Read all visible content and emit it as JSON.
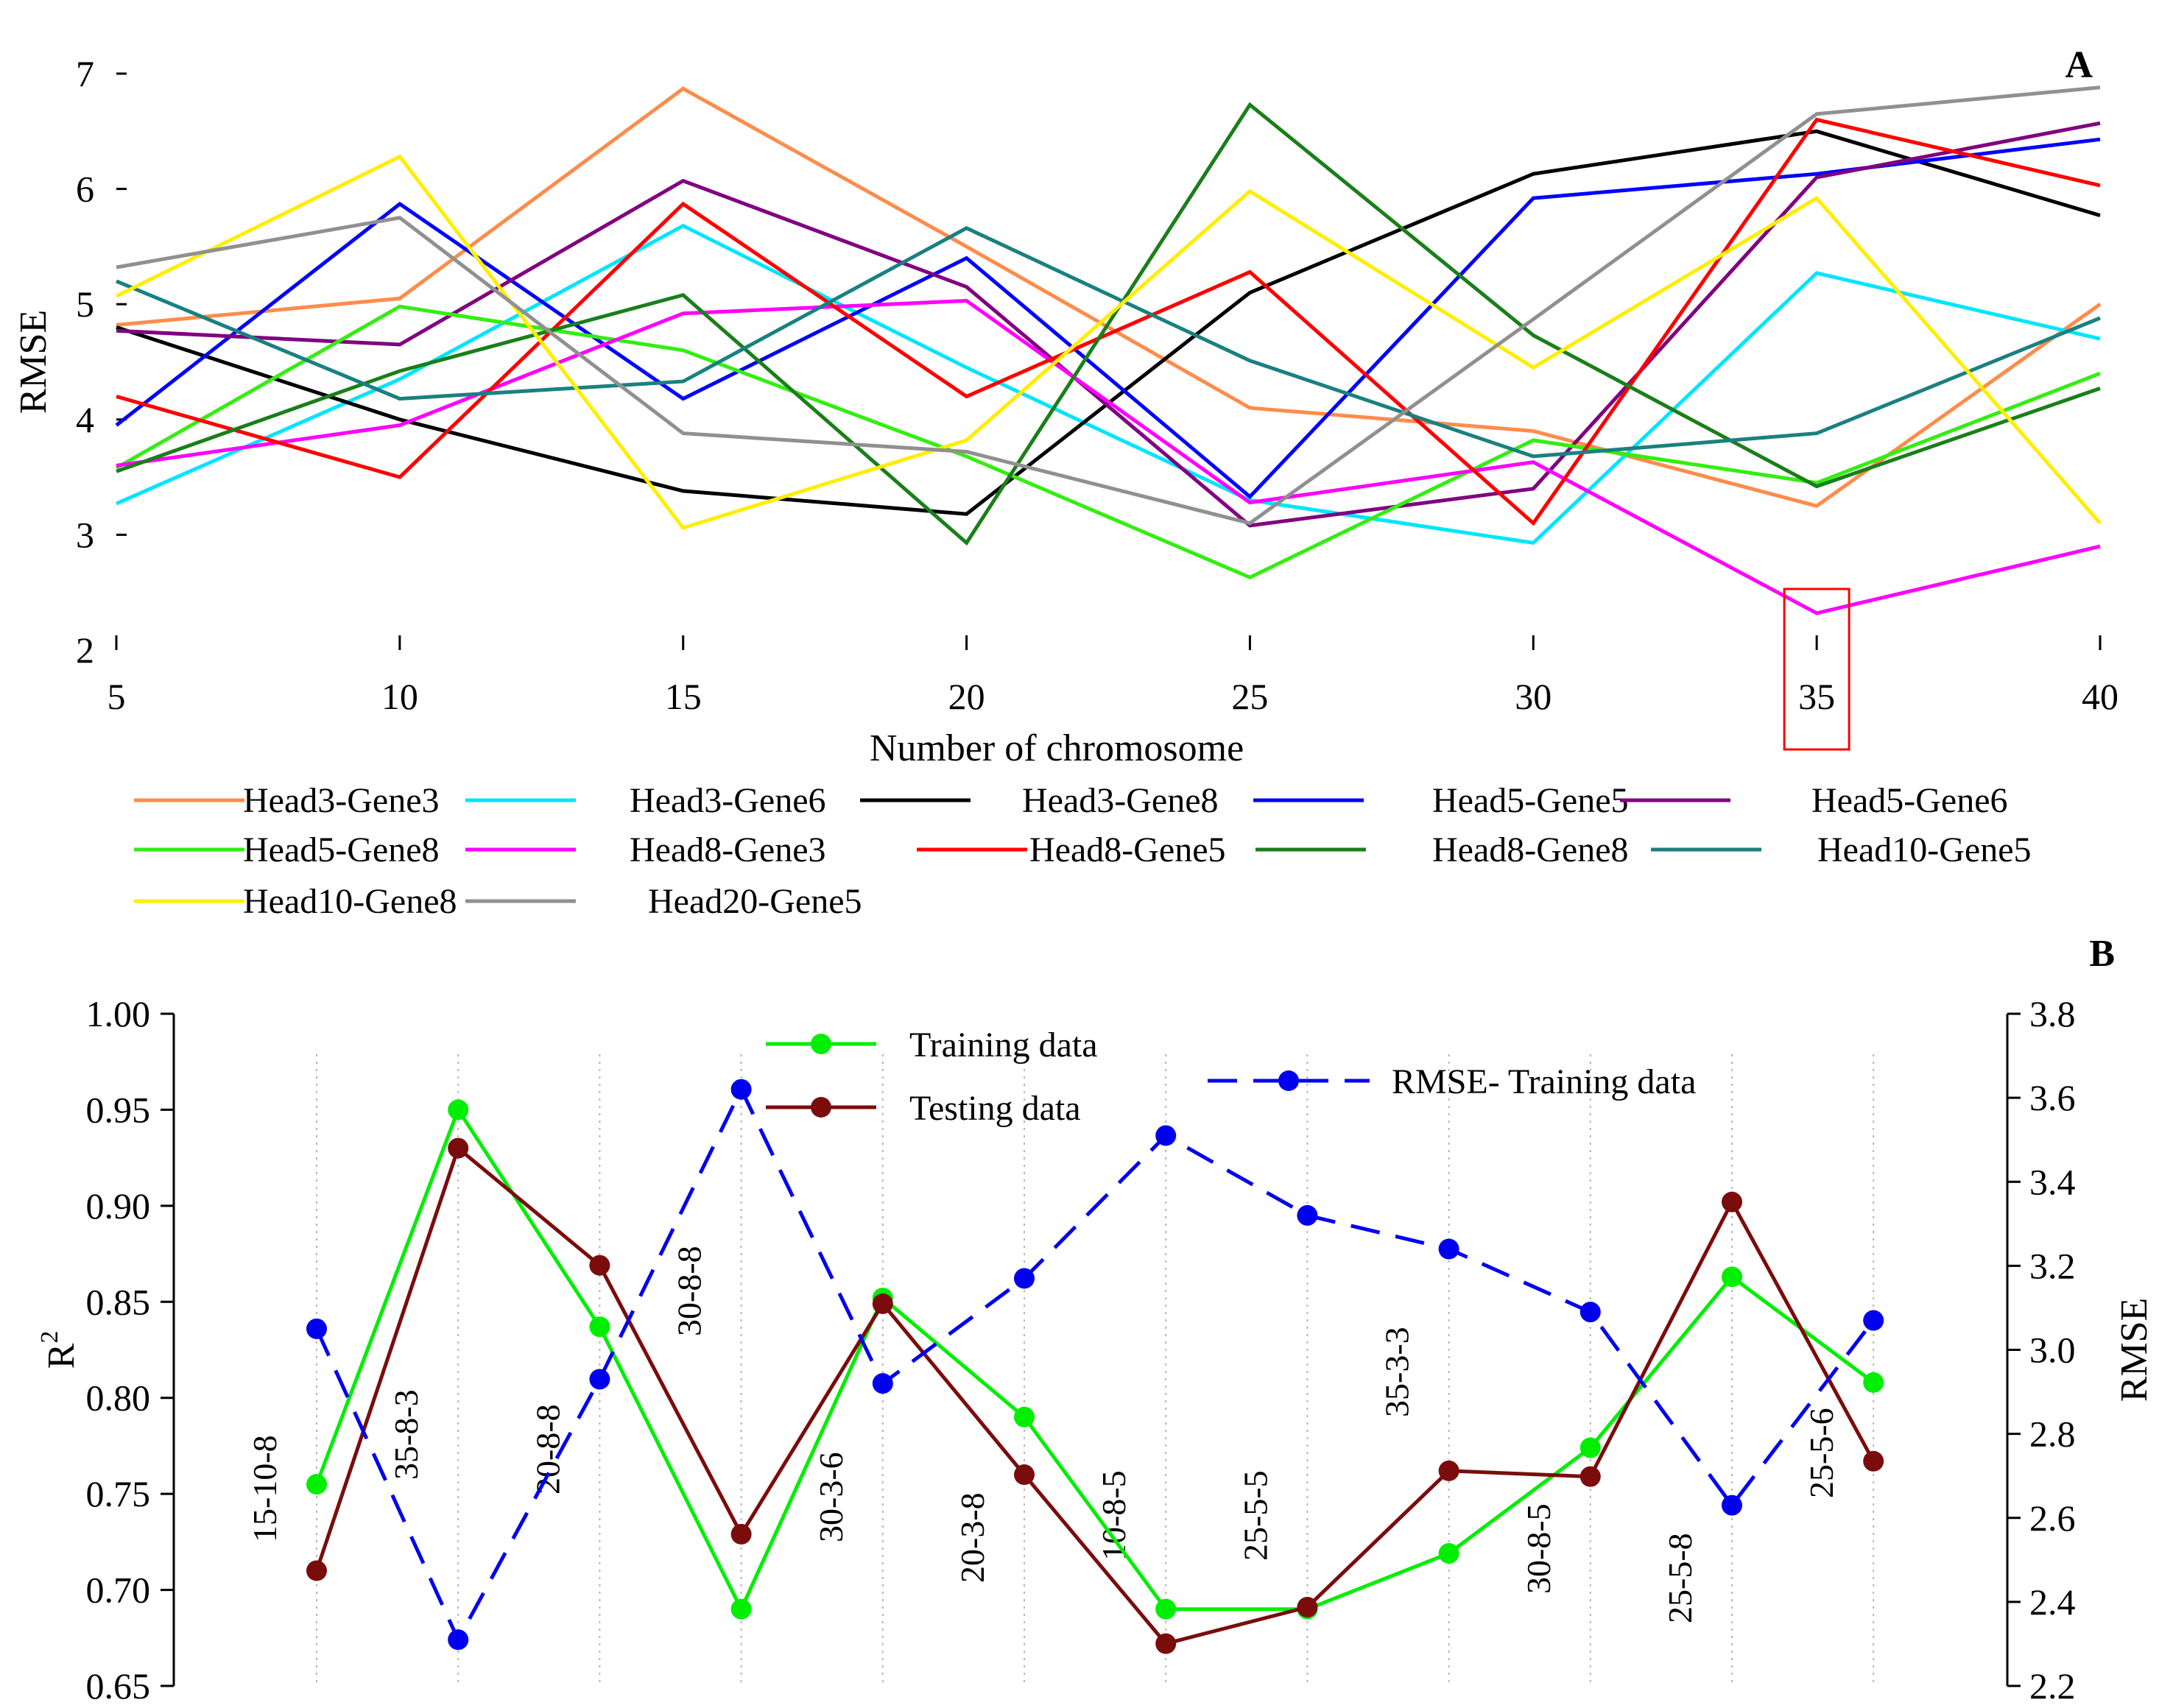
{
  "chart_data": [
    {
      "type": "line",
      "panel_label": "A",
      "xlabel": "Number of chromosome",
      "ylabel": "RMSE",
      "x": [
        5,
        10,
        15,
        20,
        25,
        30,
        35,
        40
      ],
      "xticks": [
        "5",
        "10",
        "15",
        "20",
        "25",
        "30",
        "35",
        "40"
      ],
      "ylim": [
        2,
        7
      ],
      "yticks": [
        "2",
        "3",
        "4",
        "5",
        "6",
        "7"
      ],
      "highlight": {
        "x": 35,
        "series": "Head8-Gene3",
        "color": "#ff0000"
      },
      "series": [
        {
          "name": "Head3-Gene3",
          "color": "#ff8c4a",
          "values": [
            4.82,
            5.05,
            6.87,
            5.5,
            4.1,
            3.9,
            3.25,
            5.0
          ]
        },
        {
          "name": "Head3-Gene6",
          "color": "#00e5ff",
          "values": [
            3.27,
            4.35,
            5.68,
            4.45,
            3.3,
            2.93,
            5.27,
            4.7
          ]
        },
        {
          "name": "Head3-Gene8",
          "color": "#000000",
          "values": [
            4.8,
            4.0,
            3.38,
            3.18,
            5.1,
            6.13,
            6.5,
            5.77
          ]
        },
        {
          "name": "Head5-Gene5",
          "color": "#0000ff",
          "values": [
            3.95,
            5.87,
            4.18,
            5.4,
            3.33,
            5.92,
            6.13,
            6.43
          ]
        },
        {
          "name": "Head5-Gene6",
          "color": "#800080",
          "values": [
            4.77,
            4.65,
            6.07,
            5.15,
            3.08,
            3.4,
            6.1,
            6.57
          ]
        },
        {
          "name": "Head5-Gene8",
          "color": "#33ee11",
          "values": [
            3.58,
            4.98,
            4.6,
            3.68,
            2.63,
            3.82,
            3.45,
            4.4
          ]
        },
        {
          "name": "Head8-Gene3",
          "color": "#ff00ff",
          "values": [
            3.6,
            3.95,
            4.92,
            5.03,
            3.28,
            3.63,
            2.32,
            2.9
          ]
        },
        {
          "name": "Head8-Gene5",
          "color": "#ff0000",
          "values": [
            4.2,
            3.5,
            5.87,
            4.2,
            5.28,
            3.1,
            6.6,
            6.03
          ]
        },
        {
          "name": "Head8-Gene8",
          "color": "#1a7f1a",
          "values": [
            3.55,
            4.42,
            5.08,
            2.93,
            6.73,
            4.73,
            3.42,
            4.27
          ]
        },
        {
          "name": "Head10-Gene5",
          "color": "#1a8080",
          "values": [
            5.2,
            4.18,
            4.33,
            5.66,
            4.51,
            3.68,
            3.88,
            4.88
          ]
        },
        {
          "name": "Head10-Gene8",
          "color": "#ffee00",
          "values": [
            5.07,
            6.28,
            3.06,
            3.82,
            5.98,
            4.45,
            5.92,
            3.1
          ]
        },
        {
          "name": "Head20-Gene5",
          "color": "#909090",
          "values": [
            5.32,
            5.75,
            3.88,
            3.72,
            3.1,
            4.87,
            6.65,
            6.88
          ]
        }
      ]
    },
    {
      "type": "line",
      "panel_label": "B",
      "ylabel": "R",
      "ylabel_sup": "2",
      "y2label": "RMSE",
      "categories": [
        "15-10-8",
        "35-8-3",
        "20-8-8",
        "30-8-8",
        "30-3-6",
        "20-3-8",
        "10-8-5",
        "25-5-5",
        "35-3-3",
        "30-8-5",
        "25-5-8",
        "25-5-6"
      ],
      "ylim": [
        0.65,
        1.0
      ],
      "yticks": [
        "0.65",
        "0.70",
        "0.75",
        "0.80",
        "0.85",
        "0.90",
        "0.95",
        "1.00"
      ],
      "y2lim": [
        2.2,
        3.8
      ],
      "y2ticks": [
        "2.2",
        "2.4",
        "2.6",
        "2.8",
        "3.0",
        "3.2",
        "3.4",
        "3.6",
        "3.8"
      ],
      "series": [
        {
          "name": "Training data",
          "axis": "left",
          "color": "#00ee00",
          "style": "solid",
          "values": [
            0.755,
            0.95,
            0.837,
            0.69,
            0.852,
            0.79,
            0.69,
            0.69,
            0.719,
            0.774,
            0.863,
            0.808
          ]
        },
        {
          "name": "Testing data",
          "axis": "left",
          "color": "#7b0c0c",
          "style": "solid",
          "values": [
            0.71,
            0.93,
            0.869,
            0.729,
            0.849,
            0.76,
            0.672,
            0.691,
            0.762,
            0.759,
            0.902,
            0.767
          ]
        },
        {
          "name": "RMSE- Training data",
          "axis": "right",
          "color": "#0000ee",
          "style": "dashed",
          "values": [
            3.05,
            2.31,
            2.93,
            3.62,
            2.92,
            3.17,
            3.51,
            3.32,
            3.24,
            3.09,
            2.63,
            3.07
          ]
        }
      ]
    }
  ]
}
